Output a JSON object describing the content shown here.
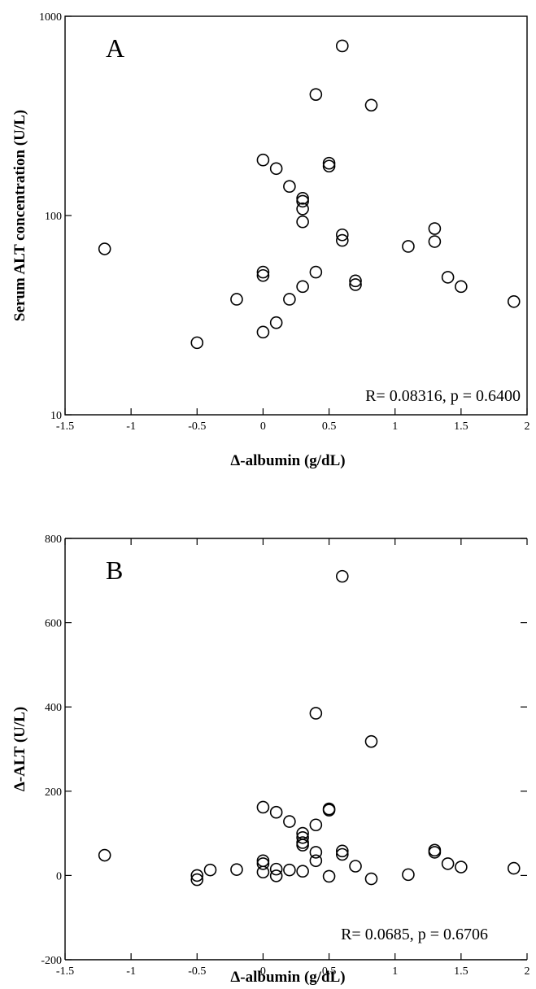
{
  "chart_data": [
    {
      "type": "scatter",
      "panel_label": "A",
      "xlabel": "Δ-albumin (g/dL)",
      "ylabel": "Serum ALT concentration (U/L)",
      "xlim": [
        -1.5,
        2
      ],
      "ylim": [
        10,
        1000
      ],
      "yscale": "log",
      "xticks": [
        -1.5,
        -1,
        -0.5,
        0,
        0.5,
        1,
        1.5,
        2
      ],
      "xtick_labels": [
        "-1.5",
        "-1",
        "-0.5",
        "0",
        "0.5",
        "1",
        "1.5",
        "2"
      ],
      "yticks": [
        10,
        100,
        1000
      ],
      "ytick_labels": [
        "10",
        "100",
        "1000"
      ],
      "grid": false,
      "annotation": "R= 0.08316, p = 0.6400",
      "points": [
        {
          "x": 0.6,
          "y": 710
        },
        {
          "x": 0.4,
          "y": 405
        },
        {
          "x": 0.82,
          "y": 358
        },
        {
          "x": 0.0,
          "y": 190
        },
        {
          "x": 0.1,
          "y": 172
        },
        {
          "x": 0.5,
          "y": 183
        },
        {
          "x": 0.5,
          "y": 177
        },
        {
          "x": 0.2,
          "y": 140
        },
        {
          "x": 0.3,
          "y": 122
        },
        {
          "x": 0.3,
          "y": 118
        },
        {
          "x": 0.3,
          "y": 108
        },
        {
          "x": 0.3,
          "y": 93
        },
        {
          "x": -1.2,
          "y": 68
        },
        {
          "x": 0.6,
          "y": 80
        },
        {
          "x": 0.6,
          "y": 75
        },
        {
          "x": 1.1,
          "y": 70
        },
        {
          "x": 1.3,
          "y": 86
        },
        {
          "x": 1.3,
          "y": 74
        },
        {
          "x": 0.0,
          "y": 52
        },
        {
          "x": 0.0,
          "y": 50
        },
        {
          "x": 0.4,
          "y": 52
        },
        {
          "x": 0.3,
          "y": 44
        },
        {
          "x": 0.7,
          "y": 47
        },
        {
          "x": 0.7,
          "y": 45
        },
        {
          "x": 1.4,
          "y": 49
        },
        {
          "x": 1.5,
          "y": 44
        },
        {
          "x": -0.2,
          "y": 38
        },
        {
          "x": 0.2,
          "y": 38
        },
        {
          "x": 1.9,
          "y": 37
        },
        {
          "x": 0.1,
          "y": 29
        },
        {
          "x": 0.0,
          "y": 26
        },
        {
          "x": -0.5,
          "y": 23
        }
      ]
    },
    {
      "type": "scatter",
      "panel_label": "B",
      "xlabel": "Δ-albumin (g/dL)",
      "ylabel": "Δ-ALT (U/L)",
      "xlim": [
        -1.5,
        2
      ],
      "ylim": [
        -200,
        800
      ],
      "yscale": "linear",
      "xticks": [
        -1.5,
        -1,
        -0.5,
        0,
        0.5,
        1,
        1.5,
        2
      ],
      "xtick_labels": [
        "-1.5",
        "-1",
        "-0.5",
        "0",
        "0.5",
        "1",
        "1.5",
        "2"
      ],
      "yticks": [
        -200,
        0,
        200,
        400,
        600,
        800
      ],
      "ytick_labels": [
        "-200",
        "0",
        "200",
        "400",
        "600",
        "800"
      ],
      "grid": false,
      "annotation": "R= 0.0685, p = 0.6706",
      "points": [
        {
          "x": 0.6,
          "y": 710
        },
        {
          "x": 0.4,
          "y": 385
        },
        {
          "x": 0.82,
          "y": 318
        },
        {
          "x": 0.0,
          "y": 162
        },
        {
          "x": 0.1,
          "y": 150
        },
        {
          "x": 0.5,
          "y": 158
        },
        {
          "x": 0.5,
          "y": 155
        },
        {
          "x": 0.2,
          "y": 128
        },
        {
          "x": 0.4,
          "y": 120
        },
        {
          "x": 0.3,
          "y": 100
        },
        {
          "x": 0.3,
          "y": 90
        },
        {
          "x": 0.3,
          "y": 78
        },
        {
          "x": 0.3,
          "y": 72
        },
        {
          "x": -1.2,
          "y": 48
        },
        {
          "x": 0.6,
          "y": 58
        },
        {
          "x": 0.6,
          "y": 50
        },
        {
          "x": 1.3,
          "y": 60
        },
        {
          "x": 1.3,
          "y": 55
        },
        {
          "x": 0.4,
          "y": 55
        },
        {
          "x": 0.4,
          "y": 35
        },
        {
          "x": 0.0,
          "y": 35
        },
        {
          "x": 0.0,
          "y": 28
        },
        {
          "x": 0.7,
          "y": 22
        },
        {
          "x": 1.4,
          "y": 28
        },
        {
          "x": 1.5,
          "y": 20
        },
        {
          "x": 1.9,
          "y": 17
        },
        {
          "x": -0.4,
          "y": 13
        },
        {
          "x": -0.2,
          "y": 14
        },
        {
          "x": 0.2,
          "y": 13
        },
        {
          "x": 0.1,
          "y": 15
        },
        {
          "x": 0.3,
          "y": 10
        },
        {
          "x": 0.0,
          "y": 8
        },
        {
          "x": -0.5,
          "y": 0
        },
        {
          "x": -0.5,
          "y": -10
        },
        {
          "x": 0.1,
          "y": -1
        },
        {
          "x": 0.5,
          "y": -2
        },
        {
          "x": 0.82,
          "y": -8
        },
        {
          "x": 1.1,
          "y": 2
        }
      ]
    }
  ]
}
